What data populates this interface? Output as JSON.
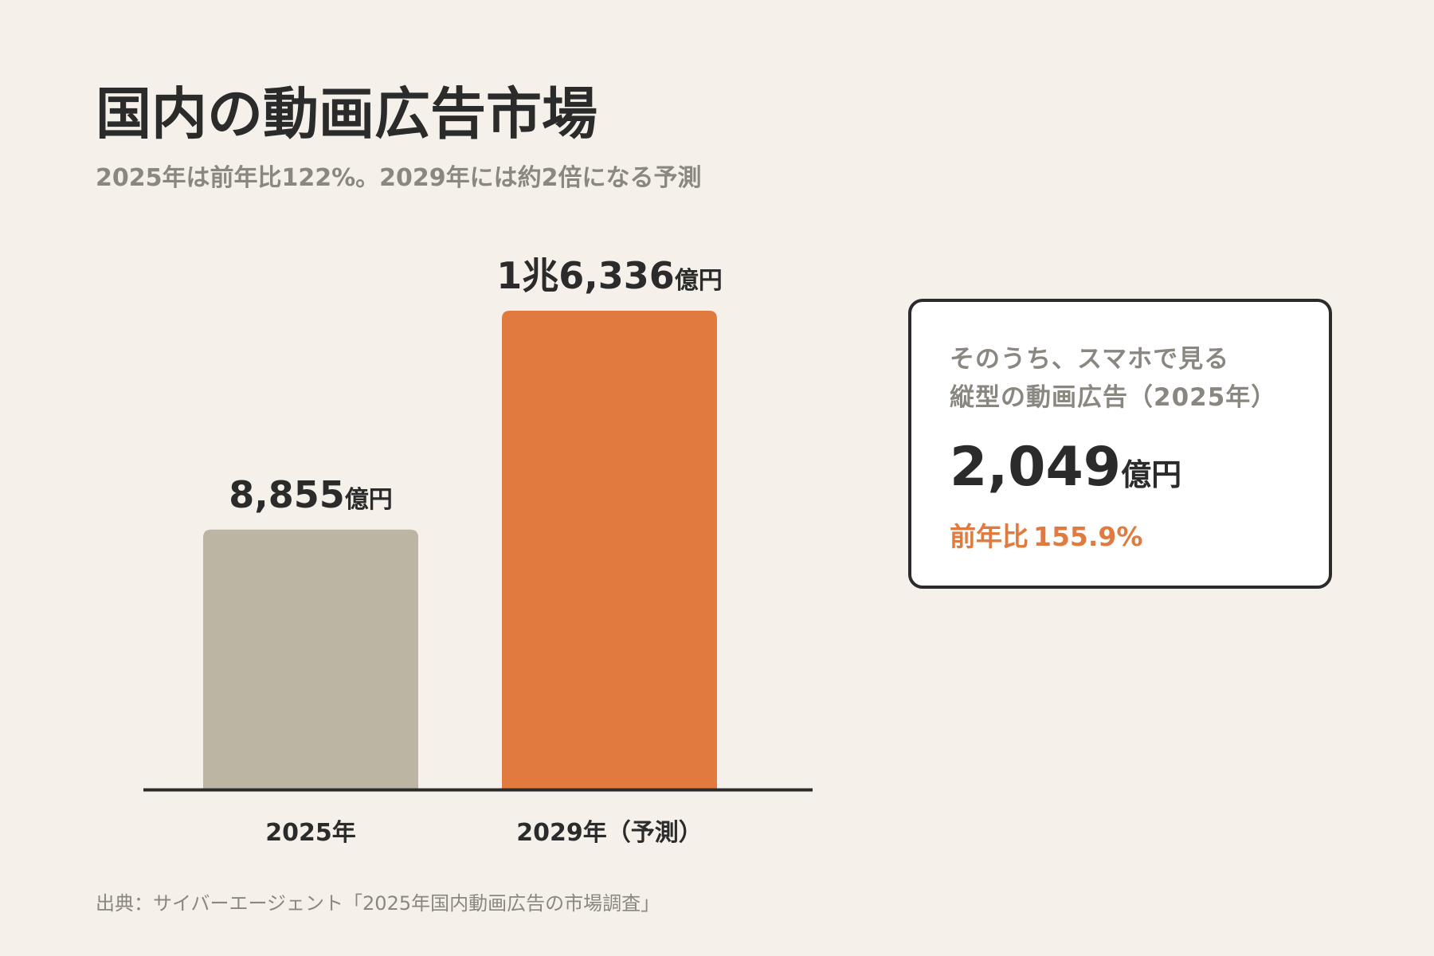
{
  "title": "国内の動画広告市場",
  "subtitle": "2025年は前年比122%。2029年には約2倍になる予測",
  "colors": {
    "background": "#f5f1ea",
    "bar_actual": "#bdb5a4",
    "bar_forecast": "#e07a3f",
    "text": "#2b2b2b",
    "muted_text": "#8a8680",
    "accent": "#e07a3f"
  },
  "chart_data": {
    "type": "bar",
    "title": "",
    "xlabel": "",
    "ylabel": "",
    "unit": "億円",
    "categories": [
      "2025年",
      "2029年（予測）"
    ],
    "values": [
      8855,
      16336
    ],
    "value_labels": [
      {
        "number": "8,855",
        "unit": "億円"
      },
      {
        "number": "1兆6,336",
        "unit": "億円"
      }
    ],
    "bar_colors": [
      "#bdb5a4",
      "#e07a3f"
    ],
    "grid": false,
    "legend": "none"
  },
  "highlight_card": {
    "label_line1": "そのうち、スマホで見る",
    "label_line2": "縦型の動画広告（2025年）",
    "value": "2,049",
    "unit": "億円",
    "growth_label": "前年比",
    "growth_value": "155.9%"
  },
  "source": "出典：サイバーエージェント「2025年国内動画広告の市場調査」"
}
